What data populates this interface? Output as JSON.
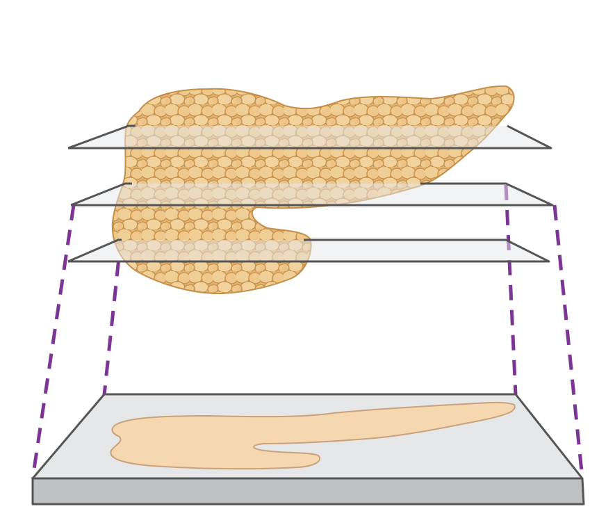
{
  "diagram": {
    "subject": "pancreas-sectioning",
    "slices": [
      {
        "id": "slice-top"
      },
      {
        "id": "slice-middle"
      },
      {
        "id": "slice-bottom"
      }
    ],
    "projection_line_color": "#7b3594",
    "plane_stroke_color": "#555555",
    "plane_fill_color": "#e6e7e9",
    "tissue_color": "#e9c48a",
    "tissue_lobule_color": "#f3d9a6",
    "tissue_outline_color": "#c9954a",
    "section_fill_color": "#f5d8b0",
    "section_outline_color": "#c9a27a",
    "slab_side_color": "#c0c1c3"
  }
}
